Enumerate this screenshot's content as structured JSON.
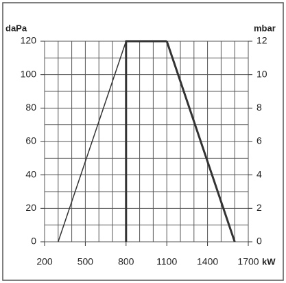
{
  "chart_data": {
    "type": "line",
    "ylabel": "daPa",
    "y2label": "mbar",
    "xlabel": "kW",
    "xlim": [
      200,
      1700
    ],
    "xticks": [
      200,
      500,
      800,
      1100,
      1400,
      1700
    ],
    "xminor": [
      200,
      300,
      400,
      500,
      600,
      700,
      800,
      900,
      1000,
      1100,
      1200,
      1300,
      1400,
      1500,
      1600,
      1700
    ],
    "ylim": [
      0,
      120
    ],
    "yticks": [
      0,
      20,
      40,
      60,
      80,
      100,
      120
    ],
    "yminor": [
      0,
      10,
      20,
      30,
      40,
      50,
      60,
      70,
      80,
      90,
      100,
      110,
      120
    ],
    "y2lim": [
      0,
      12
    ],
    "y2ticks": [
      0,
      2,
      4,
      6,
      8,
      10,
      12
    ],
    "grid": true,
    "series": [
      {
        "color": "#333",
        "line_width": 1.5,
        "x": [
          300,
          800
        ],
        "values": [
          0,
          120
        ]
      },
      {
        "color": "#333",
        "line_width": 3,
        "x": [
          800,
          800,
          1100
        ],
        "values": [
          0,
          120,
          120
        ]
      },
      {
        "color": "#333",
        "line_width": 3,
        "x": [
          1100,
          1600
        ],
        "values": [
          120,
          0
        ]
      }
    ]
  }
}
